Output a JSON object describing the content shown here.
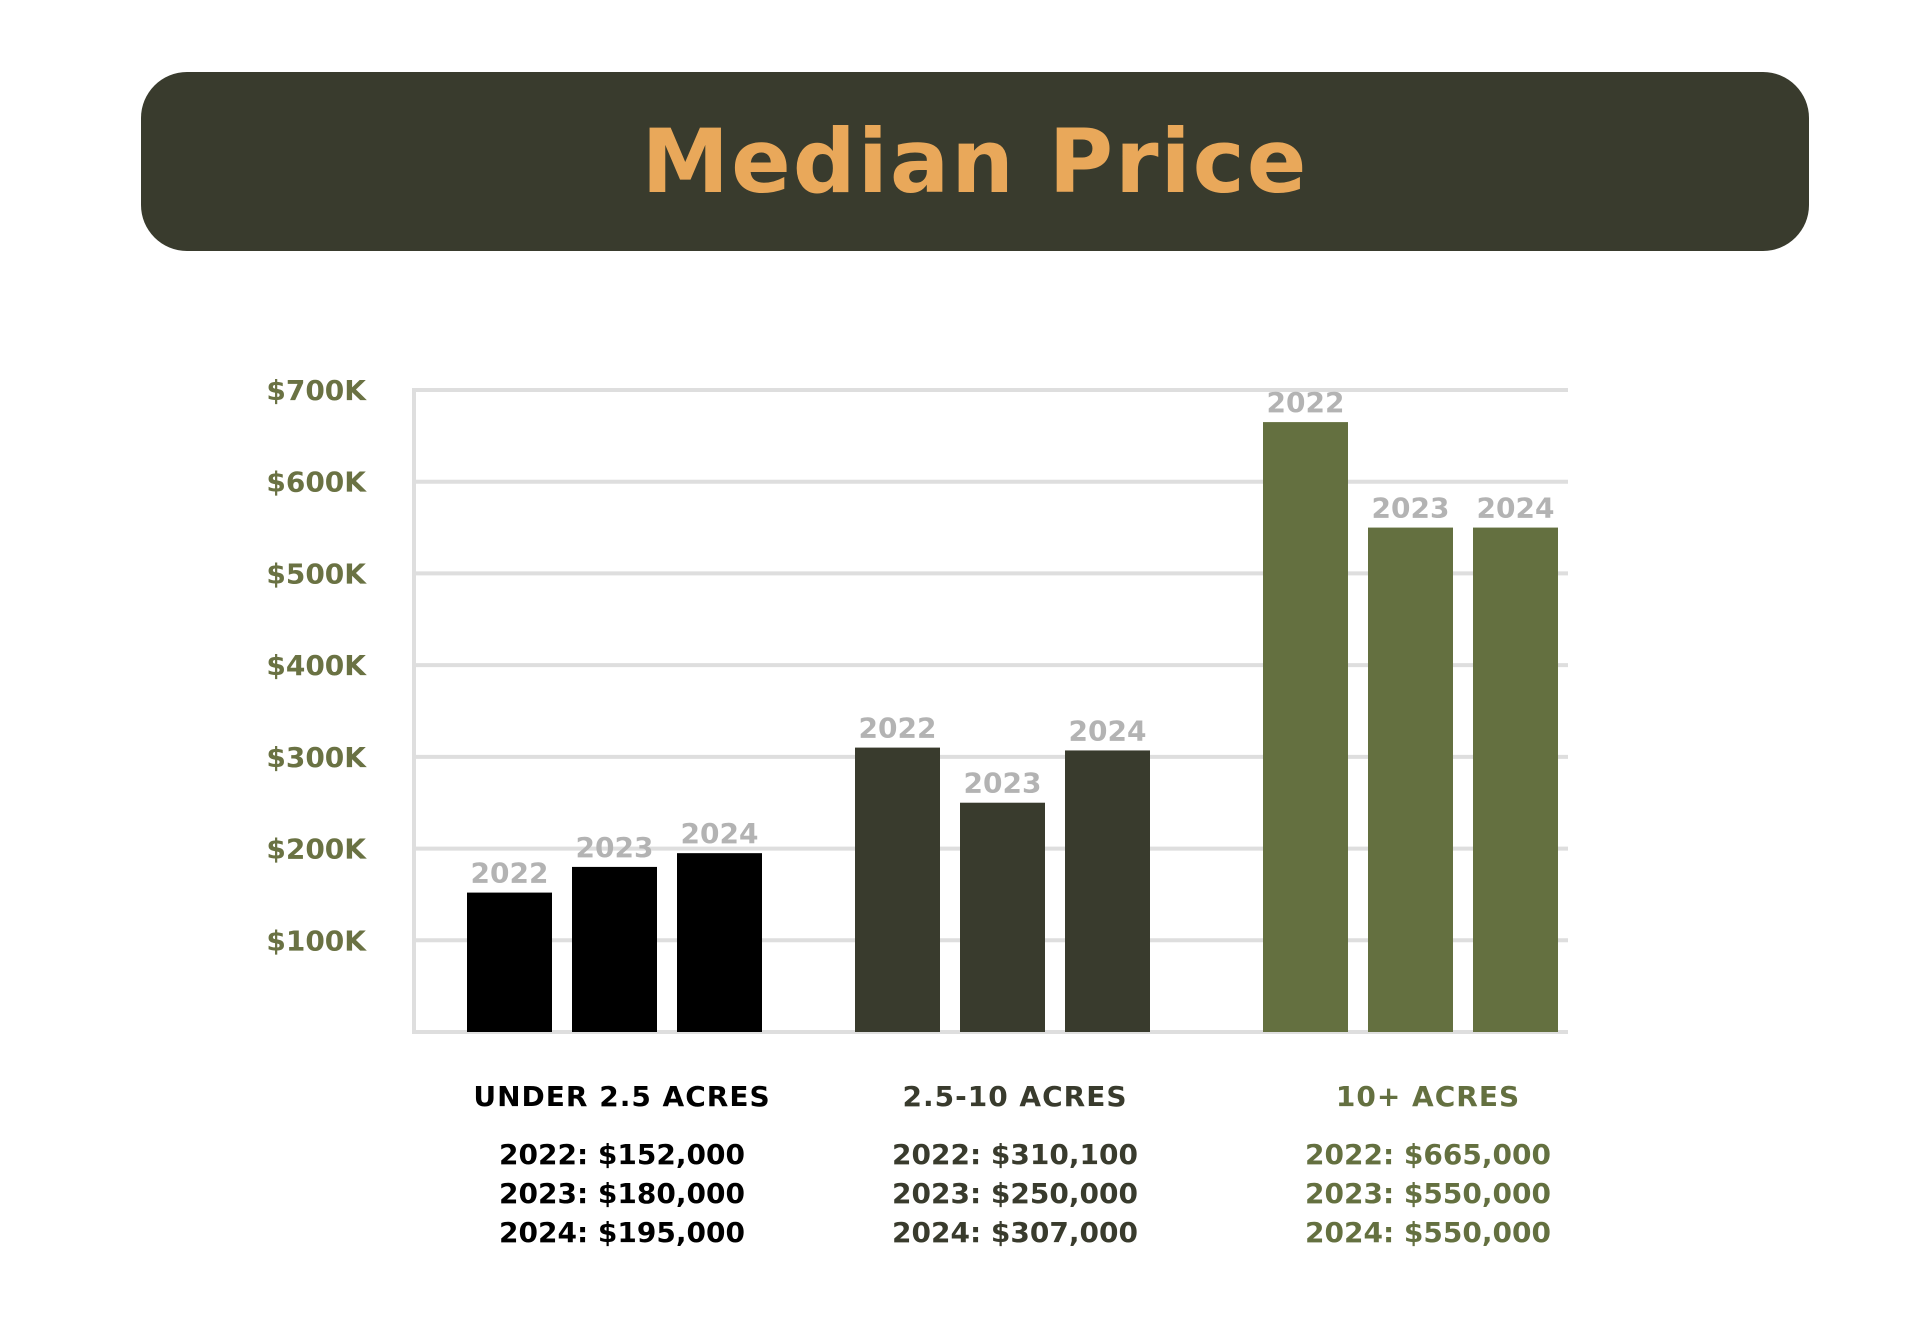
{
  "header": {
    "title": "Median Price"
  },
  "colors": {
    "banner": "#393b2d",
    "title": "#e9a85a",
    "tick_label": "#6a7243",
    "year_label": "#b3b3b3",
    "grid": "#dedede",
    "group_colors": [
      "#000000",
      "#393b2d",
      "#647040"
    ]
  },
  "chart_data": {
    "type": "bar",
    "title": "Median Price",
    "xlabel": "",
    "ylabel": "",
    "ylim": [
      0,
      700000
    ],
    "y_tick_values": [
      100000,
      200000,
      300000,
      400000,
      500000,
      600000,
      700000
    ],
    "y_tick_labels": [
      "$100K",
      "$200K",
      "$300K",
      "$400K",
      "$500K",
      "$600K",
      "$700K"
    ],
    "grid": true,
    "categories": [
      "UNDER 2.5 ACRES",
      "2.5-10 ACRES",
      "10+ ACRES"
    ],
    "series": [
      {
        "name": "2022",
        "values": [
          152000,
          310100,
          665000
        ]
      },
      {
        "name": "2023",
        "values": [
          180000,
          250000,
          550000
        ]
      },
      {
        "name": "2024",
        "values": [
          195000,
          307000,
          550000
        ]
      }
    ]
  },
  "summaries": [
    {
      "category": "UNDER 2.5 ACRES",
      "lines": [
        "2022: $152,000",
        "2023: $180,000",
        "2024: $195,000"
      ]
    },
    {
      "category": "2.5-10 ACRES",
      "lines": [
        "2022: $310,100",
        "2023: $250,000",
        "2024: $307,000"
      ]
    },
    {
      "category": "10+ ACRES",
      "lines": [
        "2022: $665,000",
        "2023: $550,000",
        "2024: $550,000"
      ]
    }
  ]
}
